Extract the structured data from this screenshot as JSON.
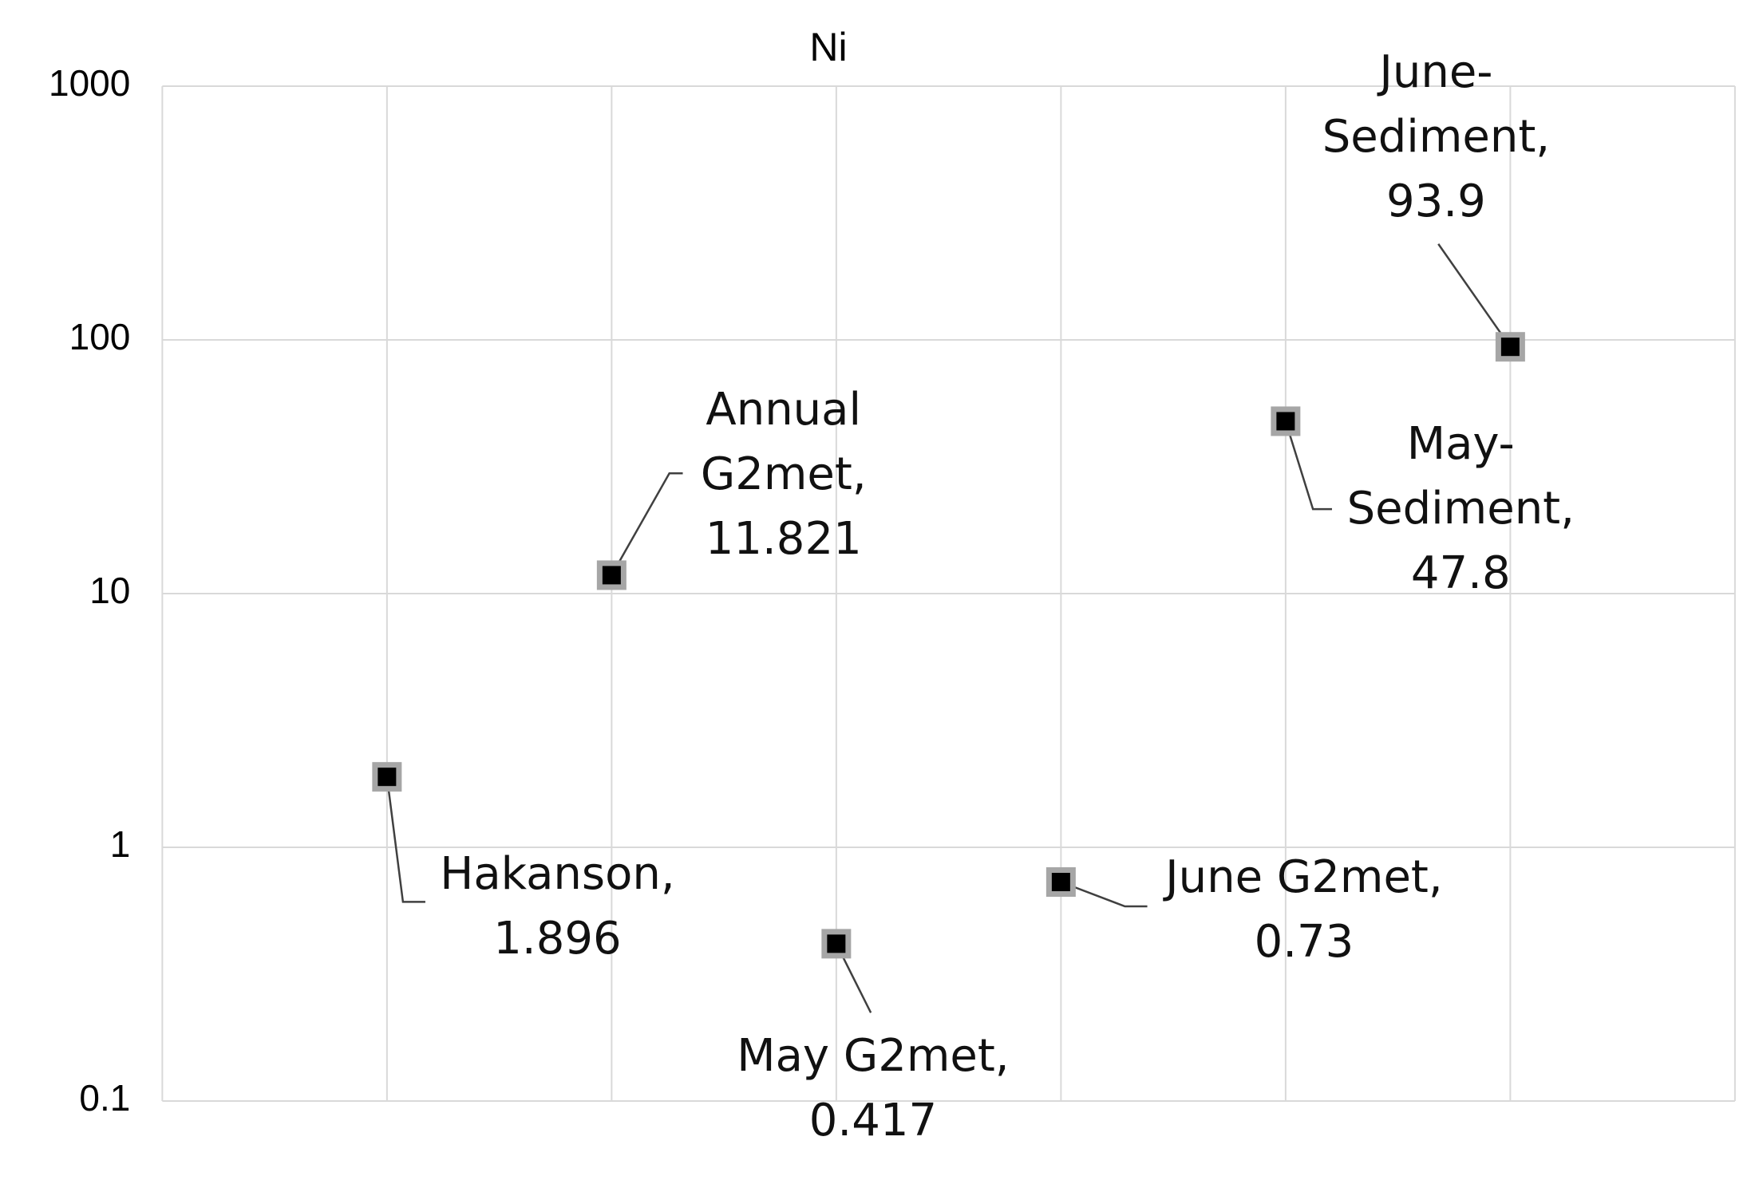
{
  "chart_data": {
    "type": "scatter",
    "title": "Ni",
    "x": [
      1,
      2,
      3,
      4,
      5,
      6
    ],
    "point_labels": [
      "Hakanson,",
      "Annual G2met,",
      "May G2met,",
      "June G2met,",
      "May-Sediment,",
      "June-Sediment,"
    ],
    "series": [
      {
        "color": "#000000",
        "edgecolor": "#a6a6a6",
        "values": [
          1.896,
          11.821,
          0.417,
          0.73,
          47.8,
          93.9
        ]
      }
    ],
    "xlim": [
      0,
      7
    ],
    "xticks": [
      0,
      1,
      2,
      3,
      4,
      5,
      6,
      7
    ],
    "ylim": [
      0.1,
      1000
    ],
    "yticks": [
      0.1,
      1,
      10,
      100,
      1000
    ],
    "log_y": true,
    "grid": true
  }
}
